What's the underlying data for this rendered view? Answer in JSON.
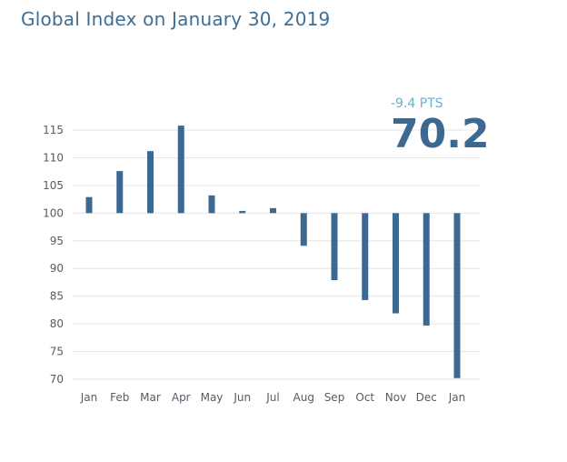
{
  "title": "Global Index on January 30, 2019",
  "change_label": "-9.4 PTS",
  "current_value": "70.2",
  "colors": {
    "bar": "#3d6990",
    "grid": "#e6e6e6",
    "title": "#3d6f96",
    "change": "#6bb0c8"
  },
  "chart_data": {
    "type": "bar",
    "baseline": 100,
    "categories": [
      "Jan",
      "Feb",
      "Mar",
      "Apr",
      "May",
      "Jun",
      "Jul",
      "Aug",
      "Sep",
      "Oct",
      "Nov",
      "Dec",
      "Jan"
    ],
    "values": [
      102.9,
      107.6,
      111.2,
      115.8,
      103.2,
      100.4,
      100.9,
      94.1,
      87.9,
      84.3,
      81.9,
      79.7,
      70.2
    ],
    "yticks": [
      115,
      110,
      105,
      100,
      95,
      90,
      85,
      80,
      75,
      70
    ],
    "ylim": [
      70,
      115
    ],
    "grid": true
  }
}
